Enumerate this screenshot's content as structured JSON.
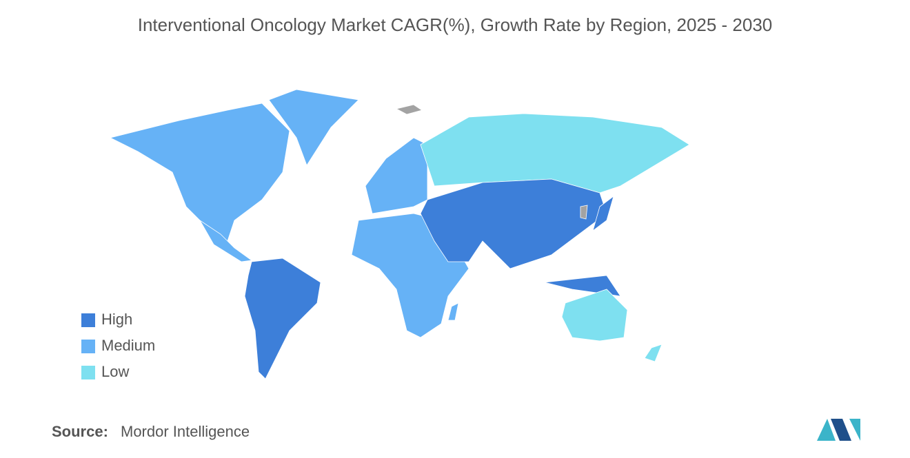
{
  "title": "Interventional Oncology Market CAGR(%), Growth Rate by Region, 2025 - 2030",
  "legend": [
    {
      "label": "High",
      "color": "#3d7fd9"
    },
    {
      "label": "Medium",
      "color": "#66b2f6"
    },
    {
      "label": "Low",
      "color": "#7ee0f0"
    }
  ],
  "no_data_color": "#a3a3a3",
  "source": {
    "label": "Source:",
    "text": "Mordor Intelligence"
  }
}
